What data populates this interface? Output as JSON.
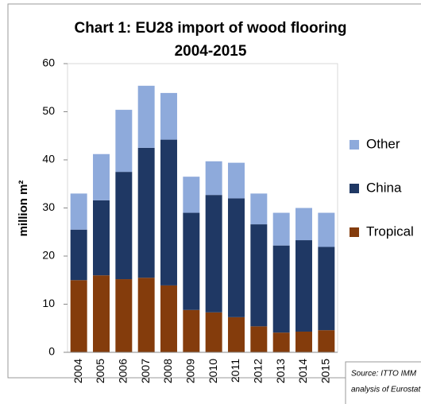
{
  "chart_data": {
    "type": "stacked_bar",
    "title": [
      "Chart 1: EU28 import of wood flooring",
      "2004-2015"
    ],
    "y_label": "million m²",
    "categories": [
      "2004",
      "2005",
      "2006",
      "2007",
      "2008",
      "2009",
      "2010",
      "2011",
      "2012",
      "2013",
      "2014",
      "2015"
    ],
    "series": [
      {
        "name": "Tropical",
        "color": "#843C0C",
        "values": [
          15,
          16,
          15.2,
          15.5,
          13.9,
          8.8,
          8.3,
          7.3,
          5.4,
          4.1,
          4.3,
          4.6
        ]
      },
      {
        "name": "China",
        "color": "#1F3864",
        "values": [
          10.5,
          15.6,
          22.3,
          27,
          30.3,
          20.2,
          24.4,
          24.7,
          21.2,
          18.1,
          19,
          17.3
        ]
      },
      {
        "name": "Other",
        "color": "#8EAADB",
        "values": [
          7.5,
          9.6,
          12.9,
          12.9,
          9.7,
          7.5,
          7,
          7.4,
          6.4,
          6.8,
          6.7,
          7.1
        ]
      }
    ],
    "ylim": [
      0,
      60
    ],
    "yticks": [
      0,
      10,
      20,
      30,
      40,
      50,
      60
    ],
    "grid": false,
    "source": [
      "Source: ITTO IMM",
      "analysis of Eurostat"
    ]
  }
}
